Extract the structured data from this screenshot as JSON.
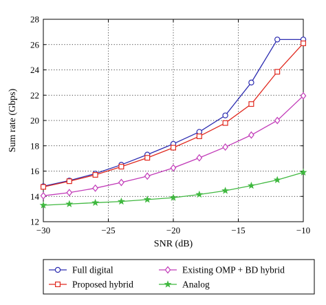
{
  "chart_data": {
    "type": "line",
    "title": "",
    "xlabel": "SNR (dB)",
    "ylabel": "Sum rate (Gbps)",
    "xlim": [
      -30,
      -10
    ],
    "ylim": [
      12,
      28
    ],
    "xticks": [
      -30,
      -25,
      -20,
      -15,
      -10
    ],
    "xtick_labels": [
      "−30",
      "−25",
      "−20",
      "−15",
      "−10"
    ],
    "yticks": [
      12,
      14,
      16,
      18,
      20,
      22,
      24,
      26,
      28
    ],
    "ytick_labels": [
      "12",
      "14",
      "16",
      "18",
      "20",
      "22",
      "24",
      "26",
      "28"
    ],
    "grid": true,
    "grid_style": "dotted",
    "legend_position": "bottom",
    "x": [
      -30,
      -28,
      -26,
      -24,
      -22,
      -20,
      -18,
      -16,
      -14,
      -12,
      -10
    ],
    "series": [
      {
        "name": "Full digital",
        "color": "#2b2bb0",
        "marker": "circle",
        "values": [
          14.8,
          15.25,
          15.8,
          16.5,
          17.3,
          18.15,
          19.1,
          20.4,
          23.0,
          26.4,
          26.4
        ]
      },
      {
        "name": "Proposed hybrid",
        "color": "#e0281e",
        "marker": "square",
        "values": [
          14.75,
          15.2,
          15.7,
          16.35,
          17.05,
          17.85,
          18.75,
          19.8,
          21.3,
          23.85,
          26.1
        ]
      },
      {
        "name": "Existing OMP + BD hybrid",
        "color": "#c13ab8",
        "marker": "diamond",
        "values": [
          14.05,
          14.3,
          14.65,
          15.1,
          15.6,
          16.25,
          17.05,
          17.9,
          18.85,
          20.0,
          21.95
        ]
      },
      {
        "name": "Analog",
        "color": "#3fb83f",
        "marker": "star",
        "values": [
          13.3,
          13.4,
          13.5,
          13.6,
          13.75,
          13.9,
          14.15,
          14.45,
          14.85,
          15.3,
          15.9
        ]
      }
    ]
  }
}
